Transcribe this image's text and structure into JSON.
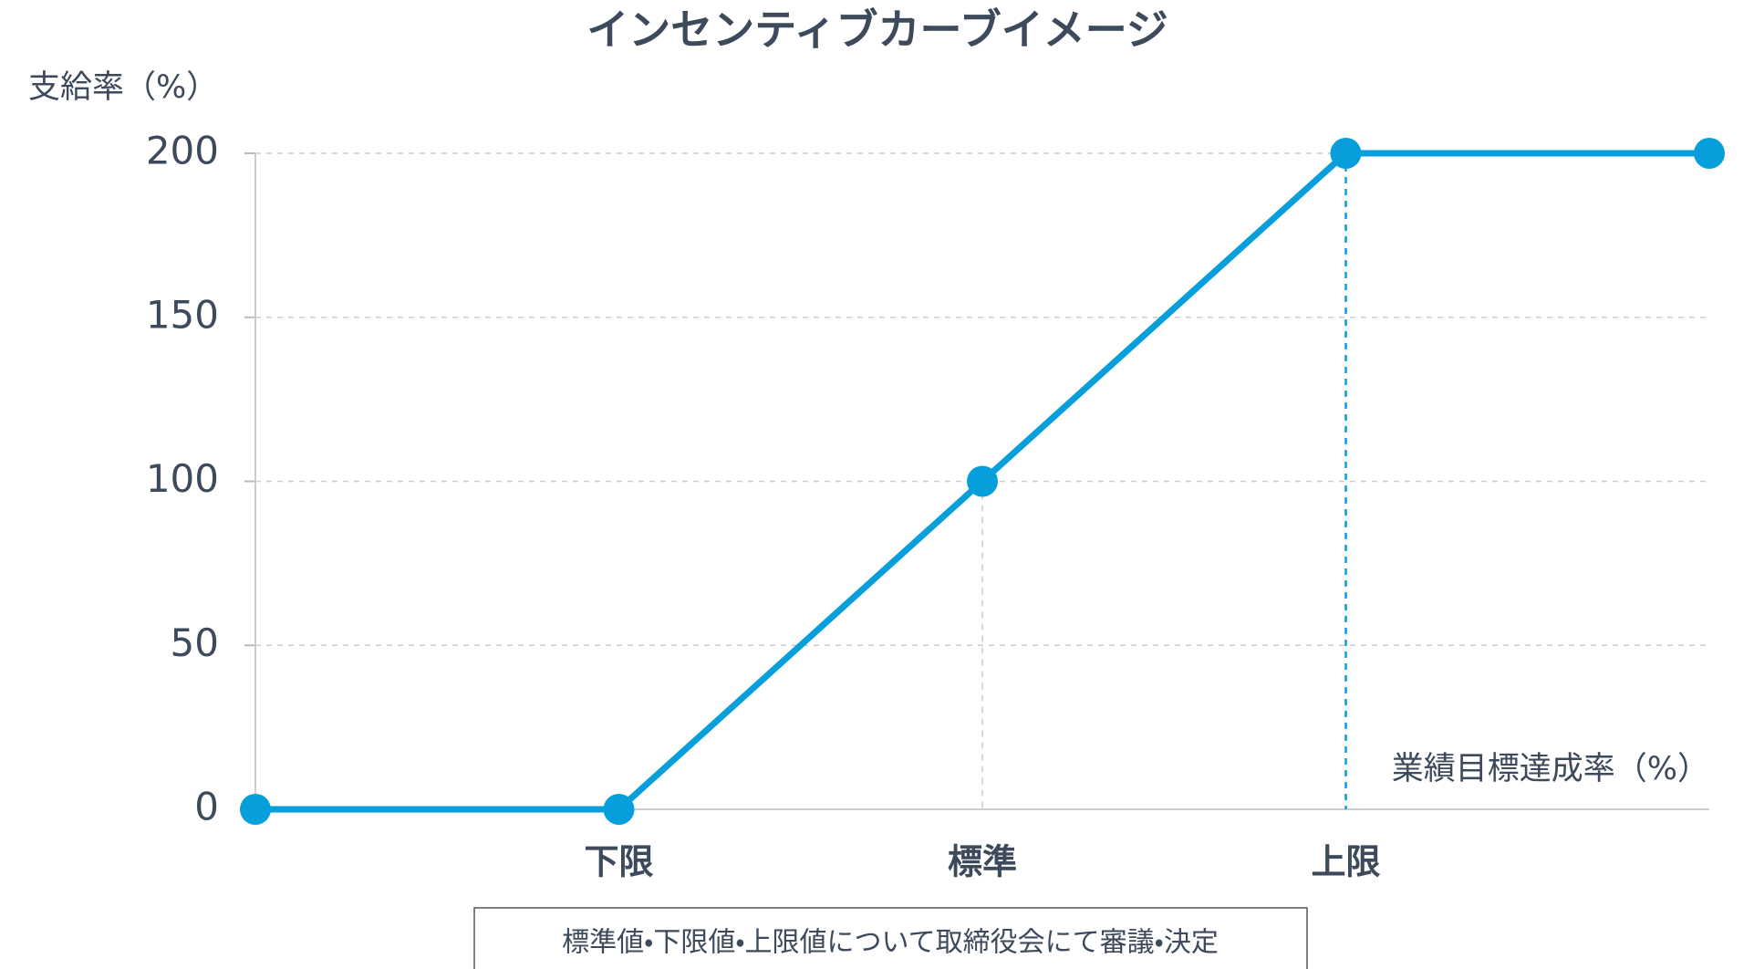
{
  "chart_data": {
    "type": "line",
    "title": "インセンティブカーブイメージ",
    "y_label": "支給率（%）",
    "x_label": "業績目標達成率（%）",
    "note": "標準値・下限値・上限値について取締役会にて審議・決定",
    "categories": [
      null,
      "下限",
      "標準",
      "上限",
      null
    ],
    "series": [
      {
        "name": "支給率",
        "color": "#079fdb",
        "values": [
          0,
          0,
          100,
          200,
          200
        ]
      }
    ],
    "ylim": [
      0,
      200
    ],
    "yticks": [
      0,
      50,
      100,
      150,
      200
    ],
    "grid": true
  }
}
